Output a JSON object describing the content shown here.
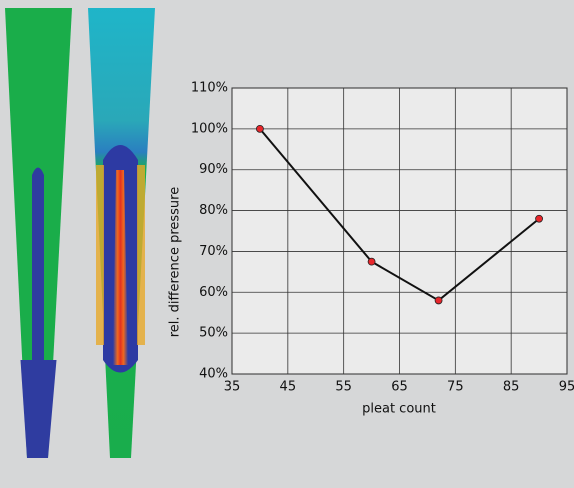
{
  "chart_data": {
    "type": "line",
    "x": [
      40,
      60,
      72,
      90
    ],
    "series": [
      {
        "name": null,
        "color": "#111111",
        "marker_color": "#e8262b",
        "values": [
          100,
          67.5,
          58,
          78
        ]
      }
    ],
    "xlabel": "pleat count",
    "ylabel": "rel. difference pressure",
    "xlim": [
      35,
      95
    ],
    "xticks": [
      35,
      45,
      55,
      65,
      75,
      85,
      95
    ],
    "ylim": [
      40,
      110
    ],
    "yticks": [
      {
        "value": 40,
        "label": "40%"
      },
      {
        "value": 50,
        "label": "50%"
      },
      {
        "value": 60,
        "label": "60%"
      },
      {
        "value": 70,
        "label": "70%"
      },
      {
        "value": 80,
        "label": "80%"
      },
      {
        "value": 90,
        "label": "90%"
      },
      {
        "value": 100,
        "label": "100%"
      },
      {
        "value": 110,
        "label": "110%"
      }
    ],
    "grid": true
  }
}
